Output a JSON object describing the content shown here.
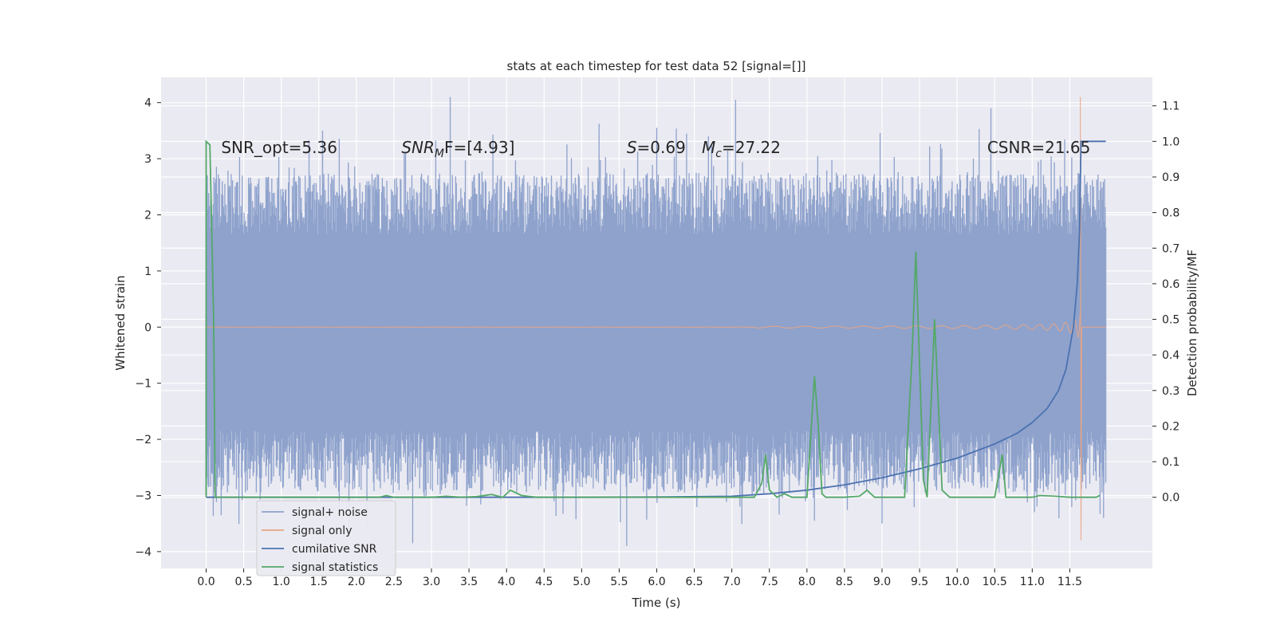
{
  "chart_data": {
    "type": "line",
    "title": "stats at each timestep for test data 52 [signal=[]]",
    "xlabel": "Time (s)",
    "ylabel": "Whitened strain",
    "ylabel_right": "Detection probability/MF",
    "xlim": [
      -0.6,
      12.6
    ],
    "ylim": [
      -4.3,
      4.45
    ],
    "ylim_right": [
      -0.2,
      1.18
    ],
    "x_ticks": [
      0.0,
      0.5,
      1.0,
      1.5,
      2.0,
      2.5,
      3.0,
      3.5,
      4.0,
      4.5,
      5.0,
      5.5,
      6.0,
      6.5,
      7.0,
      7.5,
      8.0,
      8.5,
      9.0,
      9.5,
      10.0,
      10.5,
      11.0,
      11.5
    ],
    "x_tick_labels": [
      "0.0",
      "0.5",
      "1.0",
      "1.5",
      "2.0",
      "2.5",
      "3.0",
      "3.5",
      "4.0",
      "4.5",
      "5.0",
      "5.5",
      "6.0",
      "6.5",
      "7.0",
      "7.5",
      "8.0",
      "8.5",
      "9.0",
      "9.5",
      "10.0",
      "10.5",
      "11.0",
      "11.5"
    ],
    "y_ticks": [
      -4,
      -3,
      -2,
      -1,
      0,
      1,
      2,
      3,
      4
    ],
    "y_tick_labels": [
      "−4",
      "−3",
      "−2",
      "−1",
      "0",
      "1",
      "2",
      "3",
      "4"
    ],
    "y_right_ticks": [
      0.0,
      0.1,
      0.2,
      0.3,
      0.4,
      0.5,
      0.6,
      0.7,
      0.8,
      0.9,
      1.0,
      1.1
    ],
    "y_right_tick_labels": [
      "0.0",
      "0.1",
      "0.2",
      "0.3",
      "0.4",
      "0.5",
      "0.6",
      "0.7",
      "0.8",
      "0.9",
      "1.0",
      "1.1"
    ],
    "grid": true,
    "legend_position": "bottom-left",
    "annotations": [
      {
        "text": "SNR_opt=5.36",
        "x": 0.2,
        "y": 3.2
      },
      {
        "text": "SNR",
        "sub": "M",
        "after": "F=[4.93]",
        "italic": true,
        "x": 2.6,
        "y": 3.2
      },
      {
        "text": "S",
        "after": "=0.69",
        "italic": true,
        "x": 5.6,
        "y": 3.2
      },
      {
        "text": "M",
        "sub": "c",
        "after": "=27.22",
        "italic": true,
        "x": 6.6,
        "y": 3.2
      },
      {
        "text": "CSNR=21.65",
        "x": 10.4,
        "y": 3.2
      }
    ],
    "series": [
      {
        "name": "signal+ noise",
        "color": "#8ea2cc",
        "axis": "left",
        "band_core": [
          -1.15,
          1.35
        ],
        "band_envelope": [
          -2.4,
          2.2
        ],
        "t_range": [
          0.0,
          11.98
        ],
        "peaks": [
          {
            "x": 3.25,
            "y": 4.1
          },
          {
            "x": 7.05,
            "y": 4.05
          },
          {
            "x": 10.45,
            "y": 3.9
          },
          {
            "x": 2.75,
            "y": -3.85
          },
          {
            "x": 5.6,
            "y": -3.9
          },
          {
            "x": 9.0,
            "y": -3.5
          },
          {
            "x": 11.95,
            "y": -3.4
          },
          {
            "x": 0.2,
            "y": -3.35
          },
          {
            "x": 6.0,
            "y": 3.55
          },
          {
            "x": 8.1,
            "y": -3.45
          },
          {
            "x": 1.55,
            "y": 3.5
          }
        ]
      },
      {
        "name": "signal only",
        "color": "#e9a483",
        "axis": "left",
        "chirp_start": 7.3,
        "merger_time": 11.65,
        "peak_amplitude": 4.1,
        "min_value": -3.8
      },
      {
        "name": "cumilative SNR",
        "color": "#4c72b0",
        "axis": "right",
        "x": [
          0.0,
          0.0,
          0.02,
          1.0,
          3.0,
          5.0,
          6.0,
          7.0,
          7.5,
          8.0,
          8.5,
          9.0,
          9.5,
          10.0,
          10.5,
          10.8,
          11.0,
          11.2,
          11.35,
          11.45,
          11.55,
          11.6,
          11.63,
          11.65,
          11.98
        ],
        "y": [
          0.0,
          0.0,
          0.0,
          0.0,
          0.0,
          0.0,
          0.001,
          0.003,
          0.01,
          0.02,
          0.035,
          0.055,
          0.08,
          0.11,
          0.15,
          0.18,
          0.21,
          0.25,
          0.3,
          0.36,
          0.48,
          0.6,
          0.75,
          1.0,
          1.0
        ]
      },
      {
        "name": "signal statistics",
        "color": "#55a868",
        "axis": "right",
        "x": [
          0.0,
          0.0,
          0.05,
          0.1,
          0.12,
          0.5,
          1.0,
          2.0,
          2.3,
          2.4,
          2.5,
          3.0,
          3.2,
          3.4,
          3.6,
          3.8,
          3.95,
          4.05,
          4.2,
          4.4,
          5.0,
          6.0,
          7.0,
          7.3,
          7.4,
          7.45,
          7.5,
          7.6,
          7.7,
          7.8,
          7.9,
          8.0,
          8.1,
          8.15,
          8.2,
          8.25,
          8.5,
          8.7,
          8.8,
          8.9,
          9.1,
          9.3,
          9.4,
          9.45,
          9.55,
          9.6,
          9.7,
          9.8,
          9.9,
          10.0,
          10.3,
          10.5,
          10.6,
          10.65,
          10.7,
          11.0,
          11.1,
          11.3,
          11.5,
          11.7,
          11.85,
          11.9
        ],
        "y": [
          0.0,
          1.0,
          0.99,
          0.5,
          0.0,
          0.0,
          0.0,
          0.0,
          0.0,
          0.005,
          0.0,
          0.0,
          0.003,
          0.0,
          0.002,
          0.008,
          0.0,
          0.02,
          0.005,
          0.0,
          0.0,
          0.0,
          0.0,
          0.0,
          0.04,
          0.12,
          0.02,
          0.0,
          0.01,
          0.0,
          0.0,
          0.0,
          0.34,
          0.2,
          0.01,
          0.0,
          0.0,
          0.003,
          0.02,
          0.0,
          0.0,
          0.0,
          0.4,
          0.69,
          0.05,
          0.0,
          0.5,
          0.02,
          0.0,
          0.0,
          0.0,
          0.0,
          0.12,
          0.0,
          0.0,
          0.0,
          0.005,
          0.003,
          0.0,
          0.0,
          0.0,
          0.005
        ]
      }
    ]
  }
}
